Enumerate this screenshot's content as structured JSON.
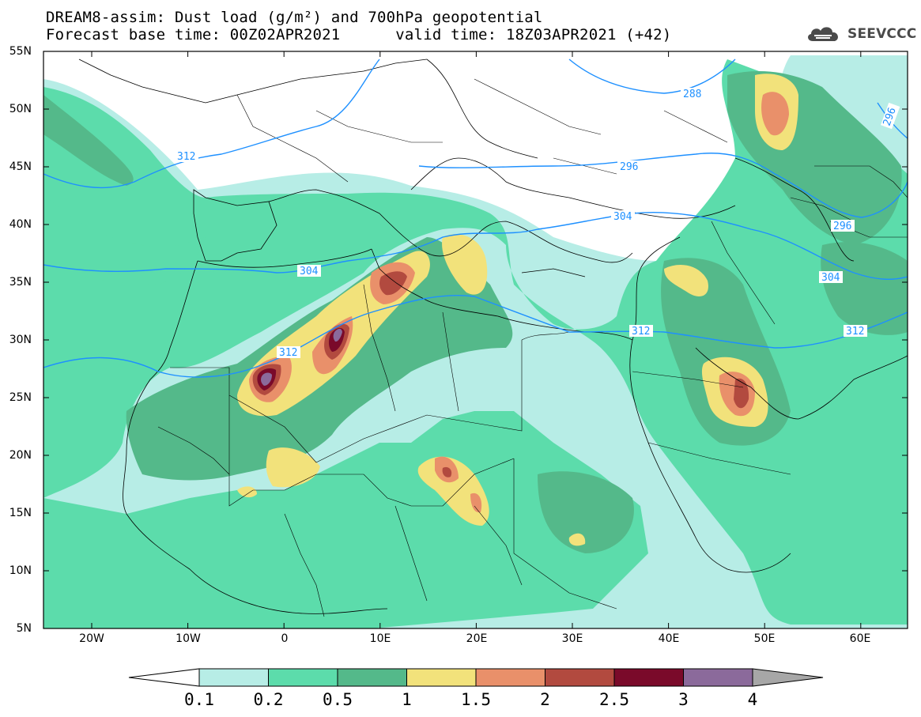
{
  "title_line1": "DREAM8-assim: Dust load (g/m²) and 700hPa geopotential",
  "title_line2": "Forecast base time: 00Z02APR2021      valid time: 18Z03APR2021 (+42)",
  "logo_text": "SEEVCCC",
  "lat_labels": [
    "55N",
    "50N",
    "45N",
    "40N",
    "35N",
    "30N",
    "25N",
    "20N",
    "15N",
    "10N",
    "5N"
  ],
  "lon_labels": [
    "20W",
    "10W",
    "0",
    "10E",
    "20E",
    "30E",
    "40E",
    "50E",
    "60E"
  ],
  "contour_labels": [
    "312",
    "304",
    "312",
    "288",
    "296",
    "296",
    "304",
    "312",
    "304",
    "312",
    "296"
  ],
  "colorbar": {
    "levels": [
      "0.1",
      "0.2",
      "0.5",
      "1",
      "1.5",
      "2",
      "2.5",
      "3",
      "4"
    ],
    "colors": [
      "#b7ede6",
      "#5cdcab",
      "#54b98a",
      "#f2e27b",
      "#e9906a",
      "#b24a3f",
      "#7a0a2a",
      "#8b6a9b"
    ],
    "over_color": "#a7a7a7",
    "under_color": "#ffffff"
  },
  "colors": {
    "isoline": "#1e90ff",
    "border": "#000000"
  }
}
